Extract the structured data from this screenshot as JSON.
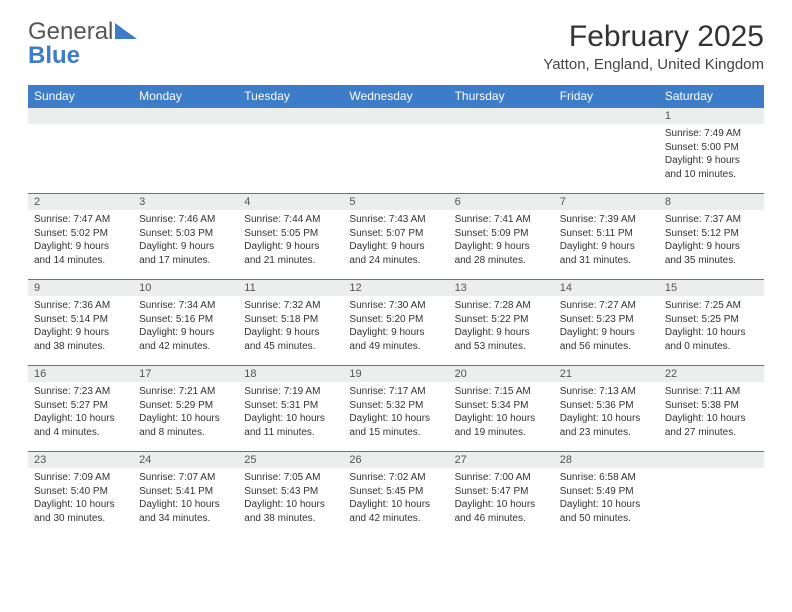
{
  "logo": {
    "line1": "General",
    "line2": "Blue"
  },
  "title": "February 2025",
  "location": "Yatton, England, United Kingdom",
  "header_color": "#3d7cc9",
  "daynum_bg": "#eceded",
  "border_color": "#3d7cc9",
  "weekdays": [
    "Sunday",
    "Monday",
    "Tuesday",
    "Wednesday",
    "Thursday",
    "Friday",
    "Saturday"
  ],
  "weeks": [
    [
      null,
      null,
      null,
      null,
      null,
      null,
      {
        "n": "1",
        "sunrise": "7:49 AM",
        "sunset": "5:00 PM",
        "daylight": "9 hours and 10 minutes."
      }
    ],
    [
      {
        "n": "2",
        "sunrise": "7:47 AM",
        "sunset": "5:02 PM",
        "daylight": "9 hours and 14 minutes."
      },
      {
        "n": "3",
        "sunrise": "7:46 AM",
        "sunset": "5:03 PM",
        "daylight": "9 hours and 17 minutes."
      },
      {
        "n": "4",
        "sunrise": "7:44 AM",
        "sunset": "5:05 PM",
        "daylight": "9 hours and 21 minutes."
      },
      {
        "n": "5",
        "sunrise": "7:43 AM",
        "sunset": "5:07 PM",
        "daylight": "9 hours and 24 minutes."
      },
      {
        "n": "6",
        "sunrise": "7:41 AM",
        "sunset": "5:09 PM",
        "daylight": "9 hours and 28 minutes."
      },
      {
        "n": "7",
        "sunrise": "7:39 AM",
        "sunset": "5:11 PM",
        "daylight": "9 hours and 31 minutes."
      },
      {
        "n": "8",
        "sunrise": "7:37 AM",
        "sunset": "5:12 PM",
        "daylight": "9 hours and 35 minutes."
      }
    ],
    [
      {
        "n": "9",
        "sunrise": "7:36 AM",
        "sunset": "5:14 PM",
        "daylight": "9 hours and 38 minutes."
      },
      {
        "n": "10",
        "sunrise": "7:34 AM",
        "sunset": "5:16 PM",
        "daylight": "9 hours and 42 minutes."
      },
      {
        "n": "11",
        "sunrise": "7:32 AM",
        "sunset": "5:18 PM",
        "daylight": "9 hours and 45 minutes."
      },
      {
        "n": "12",
        "sunrise": "7:30 AM",
        "sunset": "5:20 PM",
        "daylight": "9 hours and 49 minutes."
      },
      {
        "n": "13",
        "sunrise": "7:28 AM",
        "sunset": "5:22 PM",
        "daylight": "9 hours and 53 minutes."
      },
      {
        "n": "14",
        "sunrise": "7:27 AM",
        "sunset": "5:23 PM",
        "daylight": "9 hours and 56 minutes."
      },
      {
        "n": "15",
        "sunrise": "7:25 AM",
        "sunset": "5:25 PM",
        "daylight": "10 hours and 0 minutes."
      }
    ],
    [
      {
        "n": "16",
        "sunrise": "7:23 AM",
        "sunset": "5:27 PM",
        "daylight": "10 hours and 4 minutes."
      },
      {
        "n": "17",
        "sunrise": "7:21 AM",
        "sunset": "5:29 PM",
        "daylight": "10 hours and 8 minutes."
      },
      {
        "n": "18",
        "sunrise": "7:19 AM",
        "sunset": "5:31 PM",
        "daylight": "10 hours and 11 minutes."
      },
      {
        "n": "19",
        "sunrise": "7:17 AM",
        "sunset": "5:32 PM",
        "daylight": "10 hours and 15 minutes."
      },
      {
        "n": "20",
        "sunrise": "7:15 AM",
        "sunset": "5:34 PM",
        "daylight": "10 hours and 19 minutes."
      },
      {
        "n": "21",
        "sunrise": "7:13 AM",
        "sunset": "5:36 PM",
        "daylight": "10 hours and 23 minutes."
      },
      {
        "n": "22",
        "sunrise": "7:11 AM",
        "sunset": "5:38 PM",
        "daylight": "10 hours and 27 minutes."
      }
    ],
    [
      {
        "n": "23",
        "sunrise": "7:09 AM",
        "sunset": "5:40 PM",
        "daylight": "10 hours and 30 minutes."
      },
      {
        "n": "24",
        "sunrise": "7:07 AM",
        "sunset": "5:41 PM",
        "daylight": "10 hours and 34 minutes."
      },
      {
        "n": "25",
        "sunrise": "7:05 AM",
        "sunset": "5:43 PM",
        "daylight": "10 hours and 38 minutes."
      },
      {
        "n": "26",
        "sunrise": "7:02 AM",
        "sunset": "5:45 PM",
        "daylight": "10 hours and 42 minutes."
      },
      {
        "n": "27",
        "sunrise": "7:00 AM",
        "sunset": "5:47 PM",
        "daylight": "10 hours and 46 minutes."
      },
      {
        "n": "28",
        "sunrise": "6:58 AM",
        "sunset": "5:49 PM",
        "daylight": "10 hours and 50 minutes."
      },
      null
    ]
  ],
  "labels": {
    "sunrise": "Sunrise:",
    "sunset": "Sunset:",
    "daylight": "Daylight:"
  }
}
